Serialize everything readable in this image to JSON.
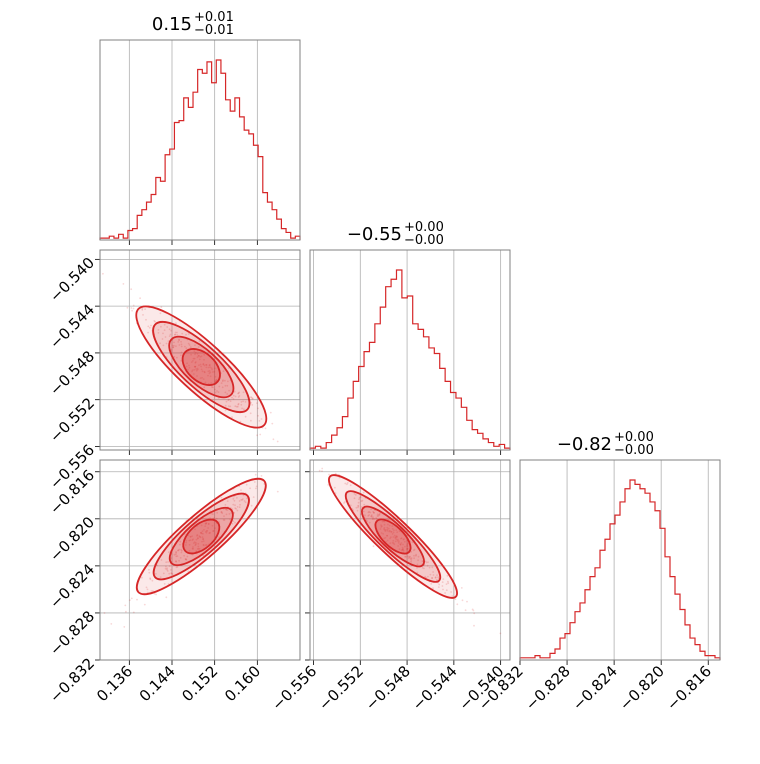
{
  "colors": {
    "main": "#d62728",
    "grid": "#b0b0b0",
    "spine": "#808080"
  },
  "titles": [
    {
      "value": "0.15",
      "plus": "+0.01",
      "minus": "−0.01"
    },
    {
      "value": "−0.55",
      "plus": "+0.00",
      "minus": "−0.00"
    },
    {
      "value": "−0.82",
      "plus": "+0.00",
      "minus": "−0.00"
    }
  ],
  "chart_data": {
    "type": "corner",
    "parameters": [
      {
        "range": [
          0.1305,
          0.168
        ],
        "ticks": [
          0.136,
          0.144,
          0.152,
          0.16
        ],
        "tick_labels": [
          "0.136",
          "0.144",
          "0.152",
          "0.160"
        ]
      },
      {
        "range": [
          -0.5563,
          -0.5392
        ],
        "ticks": [
          -0.556,
          -0.552,
          -0.548,
          -0.544,
          -0.54
        ],
        "tick_labels": [
          "−0.556",
          "−0.552",
          "−0.548",
          "−0.544",
          "−0.540"
        ]
      },
      {
        "range": [
          -0.832,
          -0.815
        ],
        "ticks": [
          -0.832,
          -0.828,
          -0.824,
          -0.82,
          -0.816
        ],
        "tick_labels": [
          "−0.832",
          "−0.828",
          "−0.824",
          "−0.820",
          "−0.816"
        ]
      }
    ],
    "histograms": [
      {
        "param": 0,
        "counts": [
          0.01,
          0.01,
          0.02,
          0.01,
          0.03,
          0.01,
          0.05,
          0.06,
          0.13,
          0.16,
          0.2,
          0.24,
          0.33,
          0.31,
          0.45,
          0.48,
          0.62,
          0.63,
          0.75,
          0.7,
          0.78,
          0.9,
          0.88,
          0.94,
          0.83,
          0.95,
          0.88,
          0.74,
          0.68,
          0.75,
          0.65,
          0.58,
          0.56,
          0.5,
          0.44,
          0.25,
          0.2,
          0.16,
          0.11,
          0.06,
          0.04,
          0.01,
          0.02
        ]
      },
      {
        "param": 1,
        "counts": [
          0.01,
          0.02,
          0.01,
          0.04,
          0.08,
          0.12,
          0.18,
          0.28,
          0.37,
          0.45,
          0.53,
          0.58,
          0.68,
          0.77,
          0.88,
          0.92,
          0.97,
          0.82,
          0.83,
          0.68,
          0.65,
          0.61,
          0.55,
          0.52,
          0.44,
          0.37,
          0.31,
          0.28,
          0.23,
          0.16,
          0.11,
          0.09,
          0.06,
          0.04,
          0.02,
          0.03,
          0.01
        ]
      },
      {
        "param": 2,
        "counts": [
          0.01,
          0.01,
          0.01,
          0.02,
          0.01,
          0.01,
          0.03,
          0.05,
          0.1,
          0.12,
          0.17,
          0.22,
          0.26,
          0.32,
          0.38,
          0.42,
          0.5,
          0.55,
          0.62,
          0.66,
          0.72,
          0.78,
          0.82,
          0.8,
          0.78,
          0.76,
          0.72,
          0.68,
          0.6,
          0.47,
          0.38,
          0.3,
          0.23,
          0.16,
          0.1,
          0.07,
          0.04,
          0.02,
          0.02,
          0.01
        ]
      }
    ],
    "correlations": [
      {
        "x_param": 0,
        "y_param": 1,
        "slope": -0.42,
        "width": 0.0006
      },
      {
        "x_param": 0,
        "y_param": 2,
        "slope": 0.4,
        "width": 0.0005
      },
      {
        "x_param": 1,
        "y_param": 2,
        "slope": -0.95,
        "width": 0.0004
      }
    ],
    "mean": [
      0.1495,
      -0.5492,
      -0.8215
    ]
  }
}
